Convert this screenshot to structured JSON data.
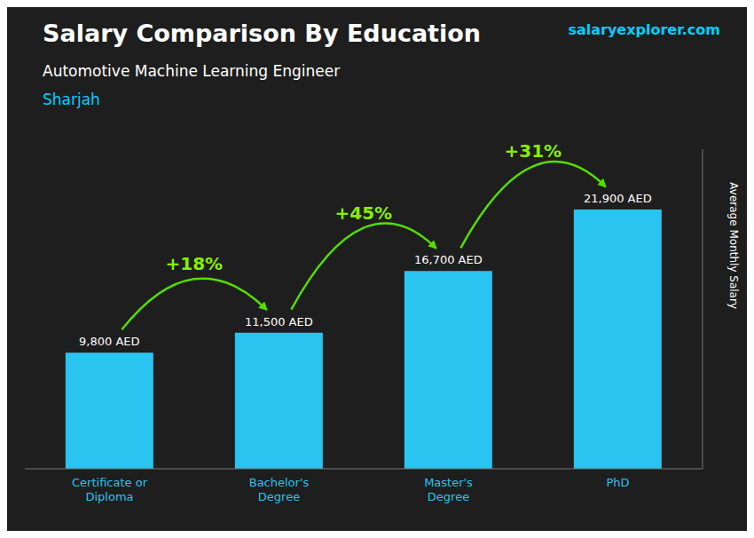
{
  "chart_data": {
    "type": "bar",
    "title": "Salary Comparison By Education",
    "subtitle": "Automotive Machine Learning Engineer",
    "ylabel": "Average Monthly Salary",
    "categories": [
      "Certificate or\nDiploma",
      "Bachelor's\nDegree",
      "Master's\nDegree",
      "PhD"
    ],
    "values": [
      9800,
      11500,
      16700,
      21900
    ],
    "value_labels": [
      "9,800 AED",
      "11,500 AED",
      "16,700 AED",
      "21,900 AED"
    ],
    "data_labels": true,
    "color": "#29c4f0",
    "ylim": [
      0,
      27000
    ],
    "yticks": [],
    "tick_labels": "x",
    "grid": false,
    "annotations": {
      "location": "Sharjah",
      "brand": "salaryexplorer.com",
      "changes": [
        "+18%",
        "+45%",
        "+31%"
      ]
    }
  }
}
